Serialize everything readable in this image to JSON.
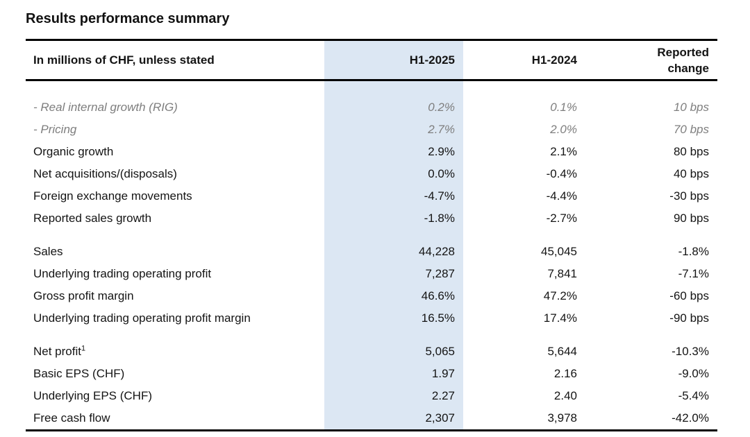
{
  "title": "Results performance summary",
  "colors": {
    "highlight_band": "#dce7f3",
    "rule": "#000000",
    "text": "#141414",
    "muted_text": "#7e7e7e"
  },
  "table": {
    "unit_header": "In millions of CHF, unless stated",
    "columns": [
      "H1-2025",
      "H1-2024",
      "Reported\nchange"
    ],
    "sections": [
      {
        "rows": [
          {
            "label": "- Real internal growth (RIG)",
            "h1_2025": "0.2%",
            "h1_2024": "0.1%",
            "change": "10 bps",
            "muted": true
          },
          {
            "label": "- Pricing",
            "h1_2025": "2.7%",
            "h1_2024": "2.0%",
            "change": "70 bps",
            "muted": true
          },
          {
            "label": "Organic growth",
            "h1_2025": "2.9%",
            "h1_2024": "2.1%",
            "change": "80 bps",
            "muted": false
          },
          {
            "label": "Net acquisitions/(disposals)",
            "h1_2025": "0.0%",
            "h1_2024": "-0.4%",
            "change": "40 bps",
            "muted": false
          },
          {
            "label": "Foreign exchange movements",
            "h1_2025": "-4.7%",
            "h1_2024": "-4.4%",
            "change": "-30 bps",
            "muted": false
          },
          {
            "label": "Reported sales growth",
            "h1_2025": "-1.8%",
            "h1_2024": "-2.7%",
            "change": "90 bps",
            "muted": false
          }
        ]
      },
      {
        "rows": [
          {
            "label": "Sales",
            "h1_2025": "44,228",
            "h1_2024": "45,045",
            "change": "-1.8%",
            "muted": false
          },
          {
            "label": "Underlying trading operating profit",
            "h1_2025": "7,287",
            "h1_2024": "7,841",
            "change": "-7.1%",
            "muted": false
          },
          {
            "label": "Gross profit margin",
            "h1_2025": "46.6%",
            "h1_2024": "47.2%",
            "change": "-60 bps",
            "muted": false
          },
          {
            "label": "Underlying trading operating profit margin",
            "h1_2025": "16.5%",
            "h1_2024": "17.4%",
            "change": "-90 bps",
            "muted": false
          }
        ]
      },
      {
        "rows": [
          {
            "label": "Net profit",
            "footnote": "1",
            "h1_2025": "5,065",
            "h1_2024": "5,644",
            "change": "-10.3%",
            "muted": false
          },
          {
            "label": "Basic EPS (CHF)",
            "h1_2025": "1.97",
            "h1_2024": "2.16",
            "change": "-9.0%",
            "muted": false
          },
          {
            "label": "Underlying EPS (CHF)",
            "h1_2025": "2.27",
            "h1_2024": "2.40",
            "change": "-5.4%",
            "muted": false
          },
          {
            "label": "Free cash flow",
            "h1_2025": "2,307",
            "h1_2024": "3,978",
            "change": "-42.0%",
            "muted": false
          }
        ]
      }
    ]
  }
}
